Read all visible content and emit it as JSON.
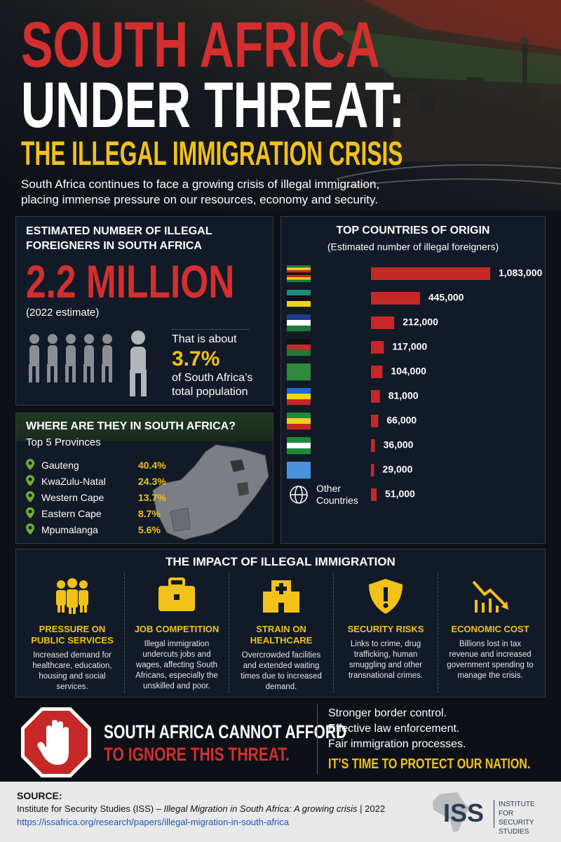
{
  "header": {
    "title_line1": "SOUTH AFRICA",
    "title_line2": "UNDER THREAT:",
    "subtitle": "THE ILLEGAL IMMIGRATION CRISIS",
    "intro": "South Africa continues to face a growing crisis of illegal immigration, placing immense pressure on our resources, economy and security."
  },
  "estimate": {
    "heading": "ESTIMATED NUMBER OF ILLEGAL FOREIGNERS IN SOUTH AFRICA",
    "figure": "2.2 MILLION",
    "note": "(2022 estimate)",
    "share_prefix": "That is about",
    "share": "3.7%",
    "share_suffix": "of South Africa’s total population"
  },
  "provinces": {
    "heading": "WHERE ARE THEY IN SOUTH AFRICA?",
    "subheading": "Top 5 Provinces",
    "rows": [
      [
        "Gauteng",
        "40.4%"
      ],
      [
        "KwaZulu-Natal",
        "24.3%"
      ],
      [
        "Western Cape",
        "13.7%"
      ],
      [
        "Eastern Cape",
        "8.7%"
      ],
      [
        "Mpumalanga",
        "5.6%"
      ]
    ]
  },
  "chart_data": {
    "type": "bar",
    "orientation": "horizontal",
    "title": "TOP COUNTRIES OF ORIGIN",
    "subtitle": "(Estimated number of illegal foreigners)",
    "categories": [
      "Zimbabwe",
      "Mozambique",
      "Lesotho",
      "Malawi",
      "Zambia",
      "DR Congo",
      "Ethiopia",
      "Nigeria",
      "Somalia",
      "Other Countries"
    ],
    "values": [
      1083000,
      445000,
      212000,
      117000,
      104000,
      81000,
      66000,
      36000,
      29000,
      51000
    ],
    "value_labels": [
      "1,083,000",
      "445,000",
      "212,000",
      "117,000",
      "104,000",
      "81,000",
      "66,000",
      "36,000",
      "29,000",
      "51,000"
    ],
    "color": "#c62828"
  },
  "impact": {
    "heading": "THE IMPACT OF ILLEGAL IMMIGRATION",
    "items": [
      {
        "title": "PRESSURE ON PUBLIC SERVICES",
        "text": "Increased demand for healthcare, education, housing and social services."
      },
      {
        "title": "JOB COMPETITION",
        "text": "Illegal immigration undercuts jobs and wages, affecting South Africans, especially the unskilled and poor."
      },
      {
        "title": "STRAIN ON HEALTHCARE",
        "text": "Overcrowded facilities and extended waiting times due to increased demand."
      },
      {
        "title": "SECURITY RISKS",
        "text": "Links to crime, drug trafficking, human smuggling and other transnational crimes."
      },
      {
        "title": "ECONOMIC COST",
        "text": "Billions lost in tax revenue and increased government spending to manage the crisis."
      }
    ]
  },
  "callout": {
    "line1": "SOUTH AFRICA CANNOT AFFORD",
    "line2": "TO IGNORE THIS THREAT.",
    "points": [
      "Stronger border control.",
      "Effective law enforcement.",
      "Fair immigration processes."
    ],
    "closing": "IT’S TIME TO PROTECT OUR NATION."
  },
  "source": {
    "label": "SOURCE:",
    "citation_prefix": "Institute for Security Studies (ISS) – ",
    "citation_title": "Illegal Migration in South Africa: A growing crisis",
    "citation_suffix": " | 2022",
    "url": "https://issafrica.org/research/papers/illegal-migration-in-south-africa",
    "logo_mark": "ISS",
    "logo_text": "INSTITUTE FOR SECURITY STUDIES"
  }
}
